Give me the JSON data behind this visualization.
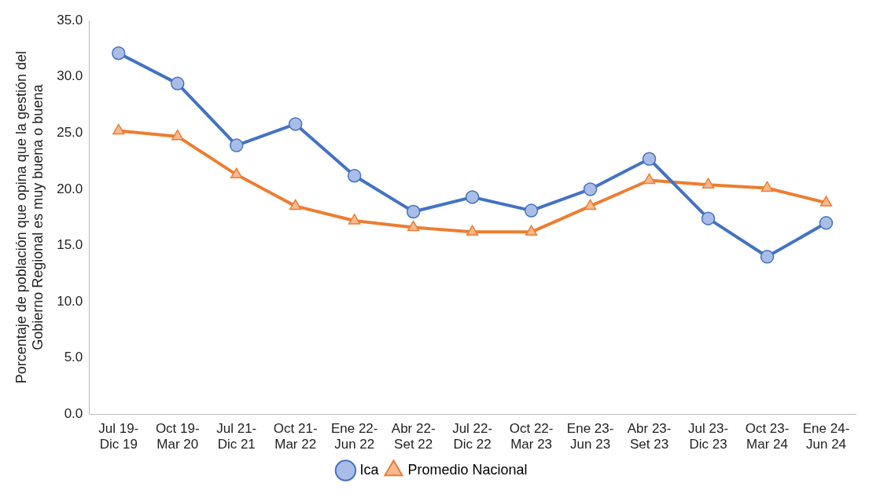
{
  "chart_data": {
    "type": "line",
    "ylabel": "Porcentaje de población que opina que la gestión del Gobierno Regional es muy buena o buena",
    "categories": [
      "Jul 19-Dic 19",
      "Oct 19-Mar 20",
      "Jul 21-Dic 21",
      "Oct 21-Mar 22",
      "Ene 22-Jun 22",
      "Abr 22-Set 22",
      "Jul 22-Dic 22",
      "Oct 22-Mar 23",
      "Ene 23-Jun 23",
      "Abr 23-Set 23",
      "Jul 23-Dic 23",
      "Oct 23-Mar 24",
      "Ene 24-Jun 24"
    ],
    "series": [
      {
        "name": "Ica",
        "color": "#4472c4",
        "marker": "circle",
        "values": [
          32.1,
          29.4,
          23.9,
          25.8,
          21.2,
          18.0,
          19.3,
          18.1,
          20.0,
          22.7,
          17.4,
          14.0,
          17.0
        ]
      },
      {
        "name": "Promedio Nacional",
        "color": "#ed7d31",
        "marker": "triangle",
        "values": [
          25.2,
          24.7,
          21.3,
          18.5,
          17.2,
          16.6,
          16.2,
          16.2,
          18.5,
          20.8,
          20.4,
          20.1,
          18.8
        ]
      }
    ],
    "ylim": [
      0,
      35
    ],
    "yticks": [
      {
        "value": 0,
        "label": "0.0"
      },
      {
        "value": 5,
        "label": "5.0"
      },
      {
        "value": 10,
        "label": "10.0"
      },
      {
        "value": 15,
        "label": "15.0"
      },
      {
        "value": 20,
        "label": "20.0"
      },
      {
        "value": 25,
        "label": "25.0"
      },
      {
        "value": 30,
        "label": "30.0"
      },
      {
        "value": 35,
        "label": "35.0"
      }
    ],
    "grid": false,
    "legend": "bottom"
  }
}
